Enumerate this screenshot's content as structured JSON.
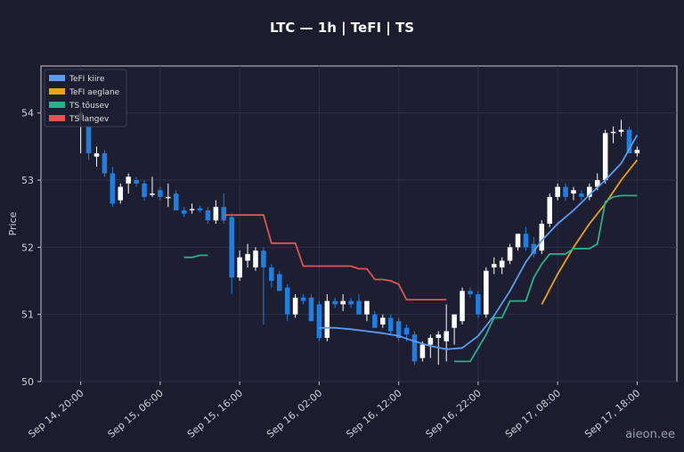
{
  "chart_data": {
    "type": "line",
    "title": "LTC — 1h  |  TeFI  |  TS",
    "ylabel": "Price",
    "xlabel": "",
    "ylim": [
      50,
      54.7
    ],
    "yticks": [
      50,
      51,
      52,
      53,
      54
    ],
    "grid": true,
    "legend_position": "top-left",
    "x_tick_labels": [
      "Sep 14, 20:00",
      "Sep 15, 06:00",
      "Sep 15, 16:00",
      "Sep 16, 02:00",
      "Sep 16, 12:00",
      "Sep 16, 22:00",
      "Sep 17, 08:00",
      "Sep 17, 18:00"
    ],
    "x_tick_index": [
      0,
      10,
      20,
      30,
      40,
      50,
      60,
      70
    ],
    "x_range": [
      -5,
      75
    ],
    "candles": [
      {
        "o": 54.0,
        "h": 54.1,
        "l": 53.4,
        "c": 53.9,
        "color": "white"
      },
      {
        "o": 53.8,
        "h": 53.9,
        "l": 53.3,
        "c": 53.4,
        "color": "blue"
      },
      {
        "o": 53.4,
        "h": 53.5,
        "l": 53.2,
        "c": 53.35,
        "color": "white"
      },
      {
        "o": 53.4,
        "h": 53.45,
        "l": 53.05,
        "c": 53.1,
        "color": "blue"
      },
      {
        "o": 53.1,
        "h": 53.2,
        "l": 52.6,
        "c": 52.65,
        "color": "blue"
      },
      {
        "o": 52.7,
        "h": 52.95,
        "l": 52.65,
        "c": 52.9,
        "color": "white"
      },
      {
        "o": 52.95,
        "h": 53.1,
        "l": 52.8,
        "c": 53.05,
        "color": "white"
      },
      {
        "o": 53.0,
        "h": 53.05,
        "l": 52.9,
        "c": 52.95,
        "color": "blue"
      },
      {
        "o": 52.95,
        "h": 53.0,
        "l": 52.7,
        "c": 52.75,
        "color": "blue"
      },
      {
        "o": 52.8,
        "h": 53.05,
        "l": 52.75,
        "c": 52.8,
        "color": "white"
      },
      {
        "o": 52.85,
        "h": 52.9,
        "l": 52.7,
        "c": 52.75,
        "color": "blue"
      },
      {
        "o": 52.75,
        "h": 52.95,
        "l": 52.6,
        "c": 52.75,
        "color": "white"
      },
      {
        "o": 52.8,
        "h": 52.85,
        "l": 52.55,
        "c": 52.55,
        "color": "blue"
      },
      {
        "o": 52.55,
        "h": 52.6,
        "l": 52.45,
        "c": 52.5,
        "color": "blue"
      },
      {
        "o": 52.55,
        "h": 52.65,
        "l": 52.5,
        "c": 52.57,
        "color": "white"
      },
      {
        "o": 52.58,
        "h": 52.62,
        "l": 52.52,
        "c": 52.55,
        "color": "blue"
      },
      {
        "o": 52.55,
        "h": 52.6,
        "l": 52.35,
        "c": 52.4,
        "color": "blue"
      },
      {
        "o": 52.4,
        "h": 52.7,
        "l": 52.35,
        "c": 52.6,
        "color": "white"
      },
      {
        "o": 52.6,
        "h": 52.8,
        "l": 52.35,
        "c": 52.4,
        "color": "blue"
      },
      {
        "o": 52.45,
        "h": 52.5,
        "l": 51.3,
        "c": 51.55,
        "color": "blue"
      },
      {
        "o": 51.55,
        "h": 51.95,
        "l": 51.5,
        "c": 51.85,
        "color": "white"
      },
      {
        "o": 51.8,
        "h": 52.05,
        "l": 51.7,
        "c": 51.9,
        "color": "white"
      },
      {
        "o": 51.95,
        "h": 52.0,
        "l": 51.65,
        "c": 51.7,
        "color": "white"
      },
      {
        "o": 51.95,
        "h": 52.0,
        "l": 50.85,
        "c": 51.7,
        "color": "blue"
      },
      {
        "o": 51.7,
        "h": 51.75,
        "l": 51.4,
        "c": 51.5,
        "color": "blue"
      },
      {
        "o": 51.6,
        "h": 51.65,
        "l": 51.35,
        "c": 51.35,
        "color": "blue"
      },
      {
        "o": 51.4,
        "h": 51.45,
        "l": 50.9,
        "c": 51.0,
        "color": "blue"
      },
      {
        "o": 51.0,
        "h": 51.3,
        "l": 50.95,
        "c": 51.25,
        "color": "white"
      },
      {
        "o": 51.25,
        "h": 51.3,
        "l": 51.15,
        "c": 51.2,
        "color": "blue"
      },
      {
        "o": 51.25,
        "h": 51.3,
        "l": 50.9,
        "c": 50.9,
        "color": "blue"
      },
      {
        "o": 51.15,
        "h": 51.2,
        "l": 50.6,
        "c": 50.65,
        "color": "blue"
      },
      {
        "o": 50.65,
        "h": 51.3,
        "l": 50.6,
        "c": 51.2,
        "color": "white"
      },
      {
        "o": 51.2,
        "h": 51.25,
        "l": 51.1,
        "c": 51.15,
        "color": "blue"
      },
      {
        "o": 51.15,
        "h": 51.3,
        "l": 51.05,
        "c": 51.2,
        "color": "white"
      },
      {
        "o": 51.2,
        "h": 51.25,
        "l": 51.1,
        "c": 51.15,
        "color": "blue"
      },
      {
        "o": 51.2,
        "h": 51.3,
        "l": 51.0,
        "c": 51.0,
        "color": "blue"
      },
      {
        "o": 51.0,
        "h": 51.2,
        "l": 50.9,
        "c": 51.2,
        "color": "white"
      },
      {
        "o": 51.0,
        "h": 51.05,
        "l": 50.8,
        "c": 50.8,
        "color": "blue"
      },
      {
        "o": 50.85,
        "h": 51.0,
        "l": 50.8,
        "c": 50.95,
        "color": "white"
      },
      {
        "o": 50.95,
        "h": 51.0,
        "l": 50.7,
        "c": 50.75,
        "color": "blue"
      },
      {
        "o": 50.9,
        "h": 50.95,
        "l": 50.6,
        "c": 50.65,
        "color": "blue"
      },
      {
        "o": 50.8,
        "h": 50.85,
        "l": 50.6,
        "c": 50.7,
        "color": "blue"
      },
      {
        "o": 50.7,
        "h": 50.75,
        "l": 50.25,
        "c": 50.3,
        "color": "blue"
      },
      {
        "o": 50.35,
        "h": 50.6,
        "l": 50.3,
        "c": 50.55,
        "color": "white"
      },
      {
        "o": 50.55,
        "h": 50.7,
        "l": 50.35,
        "c": 50.65,
        "color": "white"
      },
      {
        "o": 50.65,
        "h": 50.75,
        "l": 50.25,
        "c": 50.7,
        "color": "white"
      },
      {
        "o": 50.6,
        "h": 51.15,
        "l": 50.3,
        "c": 50.75,
        "color": "white"
      },
      {
        "o": 50.8,
        "h": 51.0,
        "l": 50.55,
        "c": 51.0,
        "color": "white"
      },
      {
        "o": 50.9,
        "h": 51.4,
        "l": 50.85,
        "c": 51.35,
        "color": "white"
      },
      {
        "o": 51.35,
        "h": 51.4,
        "l": 51.25,
        "c": 51.3,
        "color": "blue"
      },
      {
        "o": 51.3,
        "h": 51.35,
        "l": 50.95,
        "c": 51.0,
        "color": "blue"
      },
      {
        "o": 51.0,
        "h": 51.7,
        "l": 50.95,
        "c": 51.65,
        "color": "white"
      },
      {
        "o": 51.7,
        "h": 51.85,
        "l": 51.6,
        "c": 51.75,
        "color": "white"
      },
      {
        "o": 51.7,
        "h": 51.85,
        "l": 51.6,
        "c": 51.8,
        "color": "white"
      },
      {
        "o": 51.8,
        "h": 52.05,
        "l": 51.75,
        "c": 52.0,
        "color": "white"
      },
      {
        "o": 52.0,
        "h": 52.2,
        "l": 51.95,
        "c": 52.2,
        "color": "white"
      },
      {
        "o": 52.2,
        "h": 52.3,
        "l": 51.95,
        "c": 52.0,
        "color": "blue"
      },
      {
        "o": 52.05,
        "h": 52.15,
        "l": 51.85,
        "c": 51.9,
        "color": "blue"
      },
      {
        "o": 51.95,
        "h": 52.4,
        "l": 51.9,
        "c": 52.35,
        "color": "white"
      },
      {
        "o": 52.35,
        "h": 52.8,
        "l": 52.3,
        "c": 52.75,
        "color": "white"
      },
      {
        "o": 52.75,
        "h": 52.95,
        "l": 52.7,
        "c": 52.9,
        "color": "white"
      },
      {
        "o": 52.9,
        "h": 52.95,
        "l": 52.7,
        "c": 52.75,
        "color": "blue"
      },
      {
        "o": 52.85,
        "h": 52.9,
        "l": 52.7,
        "c": 52.8,
        "color": "white"
      },
      {
        "o": 52.8,
        "h": 52.85,
        "l": 52.7,
        "c": 52.75,
        "color": "blue"
      },
      {
        "o": 52.75,
        "h": 52.95,
        "l": 52.7,
        "c": 52.9,
        "color": "white"
      },
      {
        "o": 52.9,
        "h": 53.1,
        "l": 52.85,
        "c": 53.0,
        "color": "white"
      },
      {
        "o": 53.0,
        "h": 53.75,
        "l": 52.95,
        "c": 53.7,
        "color": "white"
      },
      {
        "o": 53.7,
        "h": 53.8,
        "l": 53.55,
        "c": 53.72,
        "color": "white"
      },
      {
        "o": 53.72,
        "h": 53.9,
        "l": 53.65,
        "c": 53.75,
        "color": "white"
      },
      {
        "o": 53.75,
        "h": 53.8,
        "l": 53.4,
        "c": 53.4,
        "color": "blue"
      },
      {
        "o": 53.4,
        "h": 53.5,
        "l": 53.35,
        "c": 53.45,
        "color": "white"
      }
    ],
    "series": [
      {
        "name": "TeFI kiire",
        "color": "#5b9cf0",
        "x": [
          30,
          32,
          34,
          36,
          38,
          40,
          42,
          44,
          46,
          48,
          50,
          52,
          54,
          56,
          58,
          60,
          62,
          64,
          66,
          68,
          70
        ],
        "values": [
          50.8,
          50.8,
          50.78,
          50.75,
          50.72,
          50.68,
          50.6,
          50.53,
          50.48,
          50.5,
          50.68,
          50.98,
          51.35,
          51.78,
          52.1,
          52.35,
          52.55,
          52.78,
          53.0,
          53.25,
          53.67
        ]
      },
      {
        "name": "TeFI aeglane",
        "color": "#e8a317",
        "x": [
          58,
          60,
          62,
          64,
          66,
          68,
          70
        ],
        "values": [
          51.15,
          51.6,
          52.0,
          52.35,
          52.65,
          53.0,
          53.3
        ]
      },
      {
        "name": "TS tõusev",
        "color": "#2bb08d",
        "x": [
          13,
          14,
          15,
          16,
          47,
          48,
          49,
          50,
          51,
          52,
          53,
          54,
          55,
          56,
          57,
          58,
          59,
          60,
          61,
          62,
          63,
          64,
          65,
          66,
          67,
          68,
          69,
          70
        ],
        "values": [
          51.85,
          51.85,
          51.88,
          51.88,
          50.3,
          50.3,
          50.3,
          50.5,
          50.7,
          50.95,
          50.95,
          51.2,
          51.2,
          51.2,
          51.55,
          51.75,
          51.9,
          51.9,
          51.9,
          51.98,
          51.98,
          51.98,
          52.05,
          52.68,
          52.75,
          52.77,
          52.77,
          52.77
        ]
      },
      {
        "name": "TS langev",
        "color": "#e05555",
        "x": [
          18,
          19,
          20,
          21,
          22,
          23,
          24,
          25,
          26,
          27,
          28,
          29,
          30,
          31,
          32,
          33,
          34,
          35,
          36,
          37,
          38,
          39,
          40,
          41,
          42,
          43,
          44,
          45,
          46
        ],
        "values": [
          52.48,
          52.48,
          52.48,
          52.48,
          52.48,
          52.48,
          52.06,
          52.06,
          52.06,
          52.06,
          51.72,
          51.72,
          51.72,
          51.72,
          51.72,
          51.72,
          51.72,
          51.68,
          51.68,
          51.52,
          51.52,
          51.5,
          51.45,
          51.22,
          51.22,
          51.22,
          51.22,
          51.22,
          51.22
        ]
      }
    ]
  },
  "watermark": "aieon.ee"
}
